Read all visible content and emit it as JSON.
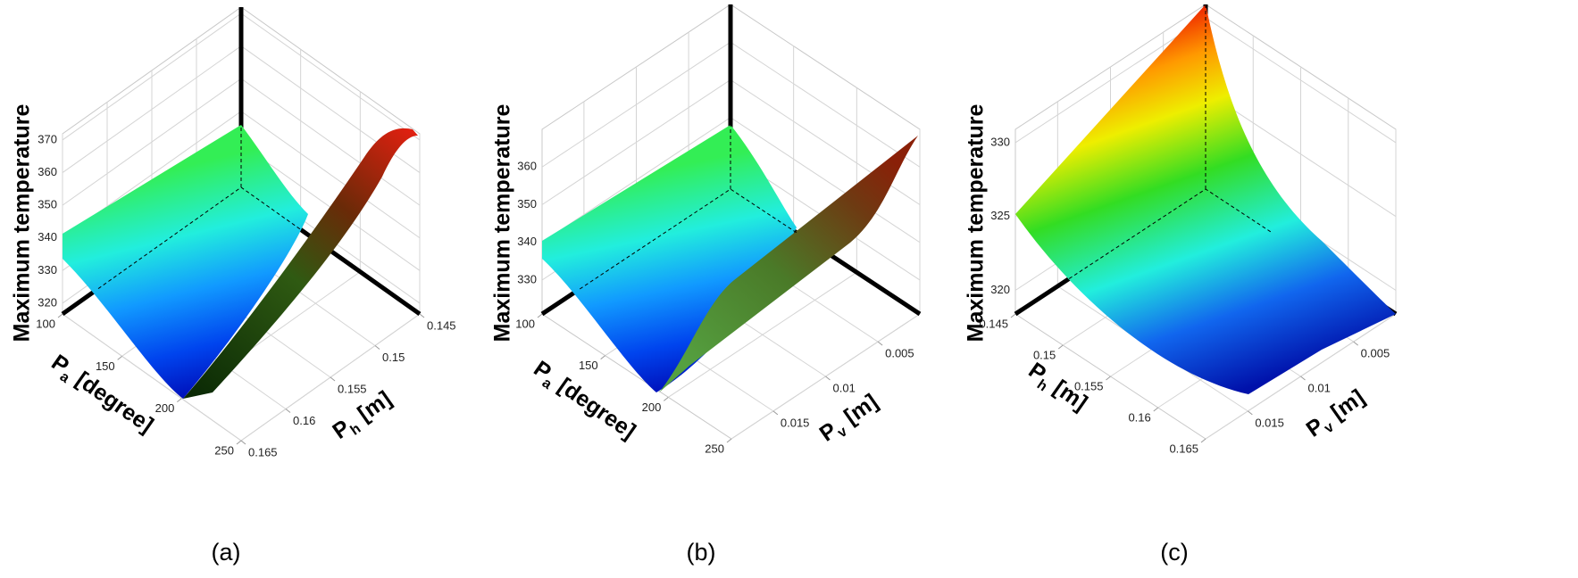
{
  "chart_data": [
    {
      "type": "surface3d",
      "caption": "(a)",
      "zlabel": "Maximum temperature",
      "xlabel": {
        "symbol": "P",
        "subscript": "a",
        "unit": "[degree]"
      },
      "ylabel": {
        "symbol": "P",
        "subscript": "h",
        "unit": "[m]"
      },
      "xlim": [
        100,
        250
      ],
      "xticks": [
        100,
        150,
        200,
        250
      ],
      "ylim": [
        0.145,
        0.165
      ],
      "yticks": [
        0.145,
        0.15,
        0.155,
        0.16,
        0.165
      ],
      "zlim": [
        316.7,
        371.9
      ],
      "zticks": [
        320,
        330,
        340,
        350,
        360,
        370
      ]
    },
    {
      "type": "surface3d",
      "caption": "(b)",
      "zlabel": "Maximum temperature",
      "xlabel": {
        "symbol": "P",
        "subscript": "a",
        "unit": "[degree]"
      },
      "ylabel": {
        "symbol": "P",
        "subscript": "v",
        "unit": "[m]"
      },
      "xlim": [
        100,
        250
      ],
      "xticks": [
        100,
        150,
        200,
        250
      ],
      "ylim": [
        0.001,
        0.019
      ],
      "yticks": [
        0.005,
        0.01,
        0.015
      ],
      "zlim": [
        321,
        370
      ],
      "zticks": [
        330,
        340,
        350,
        360
      ]
    },
    {
      "type": "surface3d",
      "caption": "(c)",
      "zlabel": "Maximum temperature",
      "xlabel": {
        "symbol": "P",
        "subscript": "h",
        "unit": "[m]"
      },
      "ylabel": {
        "symbol": "P",
        "subscript": "v",
        "unit": "[m]"
      },
      "xlim": [
        0.145,
        0.165
      ],
      "xticks": [
        0.145,
        0.15,
        0.155,
        0.16,
        0.165
      ],
      "ylim": [
        0.001,
        0.019
      ],
      "yticks": [
        0.005,
        0.01,
        0.015
      ],
      "zlim": [
        318.4,
        330.9
      ],
      "zticks": [
        320,
        325,
        330
      ]
    }
  ]
}
